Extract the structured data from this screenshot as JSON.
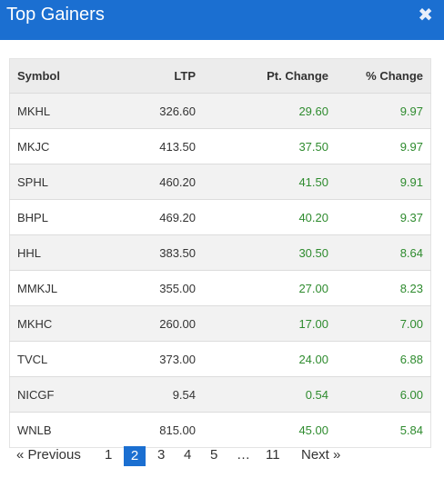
{
  "modal": {
    "title": "Top Gainers",
    "close_glyph": "✖",
    "colors": {
      "header": "#1b6fd1",
      "positive": "#2e8b2e"
    }
  },
  "table": {
    "columns": [
      "Symbol",
      "LTP",
      "Pt. Change",
      "% Change"
    ],
    "rows": [
      {
        "symbol": "MKHL",
        "ltp": "326.60",
        "pt_change": "29.60",
        "pct_change": "9.97"
      },
      {
        "symbol": "MKJC",
        "ltp": "413.50",
        "pt_change": "37.50",
        "pct_change": "9.97"
      },
      {
        "symbol": "SPHL",
        "ltp": "460.20",
        "pt_change": "41.50",
        "pct_change": "9.91"
      },
      {
        "symbol": "BHPL",
        "ltp": "469.20",
        "pt_change": "40.20",
        "pct_change": "9.37"
      },
      {
        "symbol": "HHL",
        "ltp": "383.50",
        "pt_change": "30.50",
        "pct_change": "8.64"
      },
      {
        "symbol": "MMKJL",
        "ltp": "355.00",
        "pt_change": "27.00",
        "pct_change": "8.23"
      },
      {
        "symbol": "MKHC",
        "ltp": "260.00",
        "pt_change": "17.00",
        "pct_change": "7.00"
      },
      {
        "symbol": "TVCL",
        "ltp": "373.00",
        "pt_change": "24.00",
        "pct_change": "6.88"
      },
      {
        "symbol": "NICGF",
        "ltp": "9.54",
        "pt_change": "0.54",
        "pct_change": "6.00"
      },
      {
        "symbol": "WNLB",
        "ltp": "815.00",
        "pt_change": "45.00",
        "pct_change": "5.84"
      }
    ]
  },
  "pagination": {
    "previous": "« Previous",
    "pages": [
      "1",
      "2",
      "3",
      "4",
      "5",
      "…",
      "11"
    ],
    "current": "2",
    "next": "Next »"
  }
}
